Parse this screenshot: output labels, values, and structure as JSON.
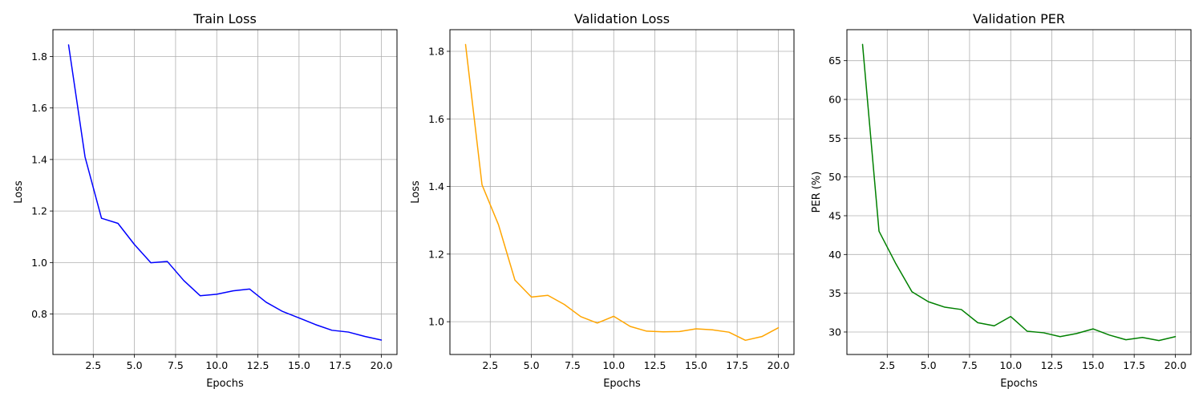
{
  "chart_data": [
    {
      "type": "line",
      "title": "Train Loss",
      "xlabel": "Epochs",
      "ylabel": "Loss",
      "xlim": [
        0.05,
        20.95
      ],
      "ylim": [
        0.643,
        1.904
      ],
      "xticks": [
        2.5,
        5.0,
        7.5,
        10.0,
        12.5,
        15.0,
        17.5,
        20.0
      ],
      "xtick_labels": [
        "2.5",
        "5.0",
        "7.5",
        "10.0",
        "12.5",
        "15.0",
        "17.5",
        "20.0"
      ],
      "yticks": [
        0.8,
        1.0,
        1.2,
        1.4,
        1.6,
        1.8
      ],
      "ytick_labels": [
        "0.8",
        "1.0",
        "1.2",
        "1.4",
        "1.6",
        "1.8"
      ],
      "grid": true,
      "color": "#0000ff",
      "x": [
        1,
        2,
        3,
        4,
        5,
        6,
        7,
        8,
        9,
        10,
        11,
        12,
        13,
        14,
        15,
        16,
        17,
        18,
        19,
        20
      ],
      "y": [
        1.845,
        1.41,
        1.172,
        1.152,
        1.07,
        0.999,
        1.004,
        0.93,
        0.871,
        0.877,
        0.89,
        0.897,
        0.846,
        0.81,
        0.785,
        0.759,
        0.737,
        0.73,
        0.713,
        0.699
      ]
    },
    {
      "type": "line",
      "title": "Validation Loss",
      "xlabel": "Epochs",
      "ylabel": "Loss",
      "xlim": [
        0.05,
        20.95
      ],
      "ylim": [
        0.903,
        1.864
      ],
      "xticks": [
        2.5,
        5.0,
        7.5,
        10.0,
        12.5,
        15.0,
        17.5,
        20.0
      ],
      "xtick_labels": [
        "2.5",
        "5.0",
        "7.5",
        "10.0",
        "12.5",
        "15.0",
        "17.5",
        "20.0"
      ],
      "yticks": [
        1.0,
        1.2,
        1.4,
        1.6,
        1.8
      ],
      "ytick_labels": [
        "1.0",
        "1.2",
        "1.4",
        "1.6",
        "1.8"
      ],
      "grid": true,
      "color": "#ffa500",
      "x": [
        1,
        2,
        3,
        4,
        5,
        6,
        7,
        8,
        9,
        10,
        11,
        12,
        13,
        14,
        15,
        16,
        17,
        18,
        19,
        20
      ],
      "y": [
        1.82,
        1.405,
        1.287,
        1.123,
        1.073,
        1.078,
        1.051,
        1.015,
        0.996,
        1.016,
        0.986,
        0.972,
        0.97,
        0.971,
        0.979,
        0.976,
        0.969,
        0.945,
        0.956,
        0.982
      ]
    },
    {
      "type": "line",
      "title": "Validation PER",
      "xlabel": "Epochs",
      "ylabel": "PER (%)",
      "xlim": [
        0.05,
        20.95
      ],
      "ylim": [
        27.1,
        69.0
      ],
      "xticks": [
        2.5,
        5.0,
        7.5,
        10.0,
        12.5,
        15.0,
        17.5,
        20.0
      ],
      "xtick_labels": [
        "2.5",
        "5.0",
        "7.5",
        "10.0",
        "12.5",
        "15.0",
        "17.5",
        "20.0"
      ],
      "yticks": [
        30,
        35,
        40,
        45,
        50,
        55,
        60,
        65
      ],
      "ytick_labels": [
        "30",
        "35",
        "40",
        "45",
        "50",
        "55",
        "60",
        "65"
      ],
      "grid": true,
      "color": "#008000",
      "x": [
        1,
        2,
        3,
        4,
        5,
        6,
        7,
        8,
        9,
        10,
        11,
        12,
        13,
        14,
        15,
        16,
        17,
        18,
        19,
        20
      ],
      "y": [
        67.1,
        43.0,
        38.9,
        35.2,
        33.9,
        33.2,
        32.9,
        31.2,
        30.8,
        32.0,
        30.1,
        29.9,
        29.4,
        29.8,
        30.4,
        29.6,
        29.0,
        29.3,
        28.9,
        29.4
      ]
    }
  ]
}
